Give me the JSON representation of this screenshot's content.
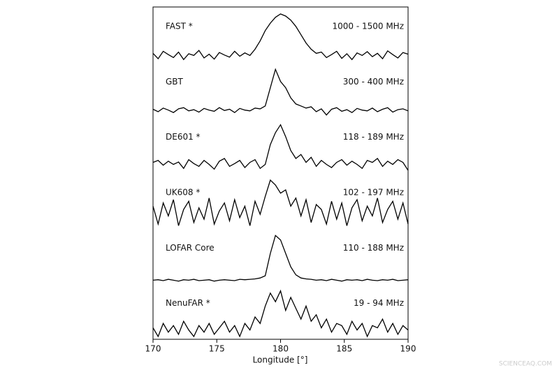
{
  "chart_data": {
    "type": "line",
    "xlabel": "Longitude [°]",
    "xlim": [
      170,
      190
    ],
    "xticks": [
      170,
      175,
      180,
      185,
      190
    ],
    "color": "#000000",
    "x": [
      170,
      170.4,
      170.8,
      171.2,
      171.6,
      172,
      172.4,
      172.8,
      173.2,
      173.6,
      174,
      174.4,
      174.8,
      175.2,
      175.6,
      176,
      176.4,
      176.8,
      177.2,
      177.6,
      178,
      178.4,
      178.8,
      179.2,
      179.6,
      180,
      180.4,
      180.8,
      181.2,
      181.6,
      182,
      182.4,
      182.8,
      183.2,
      183.6,
      184,
      184.4,
      184.8,
      185.2,
      185.6,
      186,
      186.4,
      186.8,
      187.2,
      187.6,
      188,
      188.4,
      188.8,
      189.2,
      189.6,
      190
    ],
    "series": [
      {
        "name": "FAST *",
        "band": "1000 - 1500 MHz",
        "values": [
          0.05,
          -0.08,
          0.1,
          0.02,
          -0.05,
          0.08,
          -0.1,
          0.04,
          0.0,
          0.12,
          -0.06,
          0.03,
          -0.09,
          0.07,
          0.01,
          -0.04,
          0.1,
          -0.02,
          0.06,
          0.0,
          0.15,
          0.35,
          0.6,
          0.78,
          0.92,
          1.0,
          0.95,
          0.85,
          0.7,
          0.5,
          0.3,
          0.15,
          0.05,
          0.08,
          -0.05,
          0.02,
          0.1,
          -0.07,
          0.04,
          -0.1,
          0.06,
          0.0,
          0.09,
          -0.03,
          0.05,
          -0.08,
          0.11,
          0.02,
          -0.06,
          0.07,
          0.03
        ]
      },
      {
        "name": "GBT",
        "band": "300 - 400 MHz",
        "values": [
          0.02,
          -0.04,
          0.05,
          0.0,
          -0.06,
          0.03,
          0.06,
          -0.02,
          0.01,
          -0.05,
          0.04,
          0.0,
          -0.03,
          0.06,
          -0.01,
          0.02,
          -0.06,
          0.04,
          0.0,
          -0.02,
          0.05,
          0.03,
          0.1,
          0.55,
          1.0,
          0.7,
          0.55,
          0.3,
          0.15,
          0.1,
          0.05,
          0.08,
          -0.04,
          0.03,
          -0.12,
          0.02,
          0.06,
          -0.03,
          0.01,
          -0.06,
          0.04,
          0.0,
          -0.02,
          0.05,
          -0.04,
          0.02,
          0.06,
          -0.05,
          0.01,
          0.03,
          -0.02
        ]
      },
      {
        "name": "DE601 *",
        "band": "118 - 189 MHz",
        "values": [
          0.05,
          0.1,
          -0.02,
          0.08,
          0.0,
          0.06,
          -0.1,
          0.12,
          0.02,
          -0.05,
          0.1,
          0.0,
          -0.12,
          0.08,
          0.15,
          -0.05,
          0.02,
          0.1,
          -0.08,
          0.05,
          0.12,
          -0.1,
          0.0,
          0.5,
          0.8,
          1.0,
          0.7,
          0.35,
          0.15,
          0.25,
          0.05,
          0.18,
          -0.05,
          0.1,
          0.0,
          -0.08,
          0.05,
          0.12,
          -0.02,
          0.08,
          0.0,
          -0.1,
          0.1,
          0.05,
          0.15,
          -0.05,
          0.08,
          0.0,
          0.12,
          0.05,
          -0.15
        ]
      },
      {
        "name": "UK608 *",
        "band": "102 - 197 MHz",
        "values": [
          0.2,
          -0.35,
          0.3,
          -0.1,
          0.4,
          -0.4,
          0.1,
          0.35,
          -0.3,
          0.15,
          -0.2,
          0.45,
          -0.35,
          0.05,
          0.3,
          -0.25,
          0.4,
          -0.15,
          0.2,
          -0.4,
          0.35,
          -0.05,
          0.5,
          1.0,
          0.85,
          0.6,
          0.7,
          0.2,
          0.45,
          -0.1,
          0.4,
          -0.3,
          0.25,
          0.1,
          -0.35,
          0.35,
          -0.2,
          0.3,
          -0.4,
          0.15,
          0.4,
          -0.25,
          0.2,
          -0.1,
          0.45,
          -0.3,
          0.1,
          0.35,
          -0.2,
          0.3,
          -0.35
        ]
      },
      {
        "name": "LOFAR Core",
        "band": "110 - 188 MHz",
        "values": [
          0.0,
          0.01,
          -0.01,
          0.02,
          0.0,
          -0.02,
          0.01,
          0.0,
          0.02,
          -0.01,
          0.0,
          0.01,
          -0.02,
          0.0,
          0.01,
          0.0,
          -0.01,
          0.02,
          0.01,
          0.02,
          0.03,
          0.05,
          0.1,
          0.6,
          1.0,
          0.9,
          0.6,
          0.3,
          0.12,
          0.05,
          0.03,
          0.02,
          0.0,
          0.01,
          -0.01,
          0.02,
          0.0,
          -0.02,
          0.01,
          0.0,
          0.01,
          -0.01,
          0.02,
          0.0,
          -0.01,
          0.01,
          0.0,
          0.02,
          -0.01,
          0.0,
          0.01
        ]
      },
      {
        "name": "NenuFAR *",
        "band": "19 - 94 MHz",
        "values": [
          0.1,
          -0.1,
          0.2,
          0.0,
          0.15,
          -0.05,
          0.25,
          0.05,
          -0.1,
          0.15,
          0.0,
          0.2,
          -0.05,
          0.1,
          0.25,
          0.0,
          0.15,
          -0.1,
          0.2,
          0.05,
          0.35,
          0.2,
          0.6,
          0.9,
          0.7,
          0.95,
          0.5,
          0.8,
          0.55,
          0.3,
          0.6,
          0.25,
          0.4,
          0.1,
          0.3,
          0.0,
          0.2,
          0.15,
          -0.05,
          0.25,
          0.05,
          0.2,
          -0.1,
          0.15,
          0.1,
          0.3,
          0.0,
          0.2,
          -0.05,
          0.15,
          0.05
        ]
      }
    ],
    "watermark": "SCIENCEAQ.COM"
  }
}
